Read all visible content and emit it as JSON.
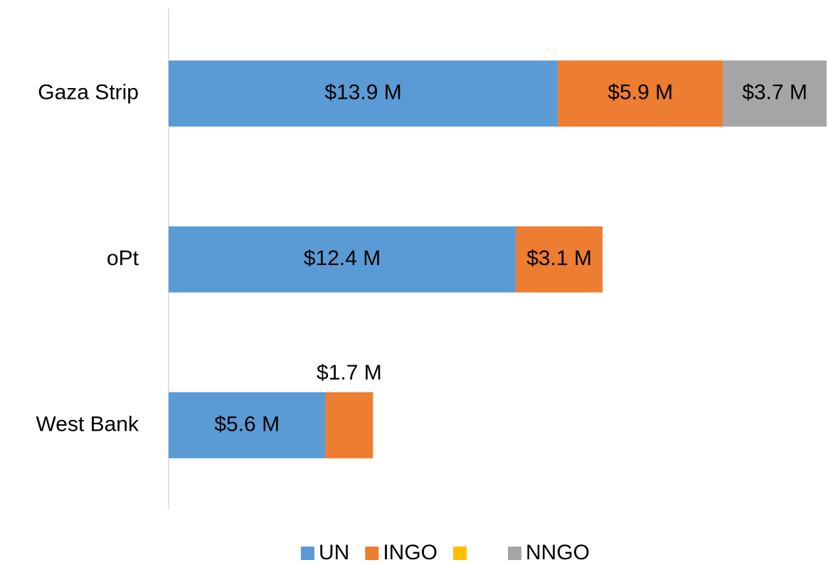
{
  "chart_data": {
    "type": "stacked-bar-horizontal",
    "categories": [
      "Gaza Strip",
      "oPt",
      "West Bank"
    ],
    "series": [
      {
        "name": "UN",
        "color": "#5b9bd5",
        "values": [
          13.9,
          12.4,
          5.6
        ],
        "value_labels": [
          "$13.9 M",
          "$12.4 M",
          "$5.6 M"
        ]
      },
      {
        "name": "INGO",
        "color": "#ed7d31",
        "values": [
          5.9,
          3.1,
          1.7
        ],
        "value_labels": [
          "$5.9 M",
          "$3.1 M",
          "$1.7 M"
        ]
      },
      {
        "color": "#ffc000",
        "values": [
          null,
          null,
          null
        ]
      },
      {
        "name": "NNGO",
        "color": "#a5a5a5",
        "values": [
          3.7,
          null,
          null
        ],
        "value_labels": [
          "$3.7 M",
          null,
          null
        ]
      }
    ],
    "legend": "bottom"
  }
}
